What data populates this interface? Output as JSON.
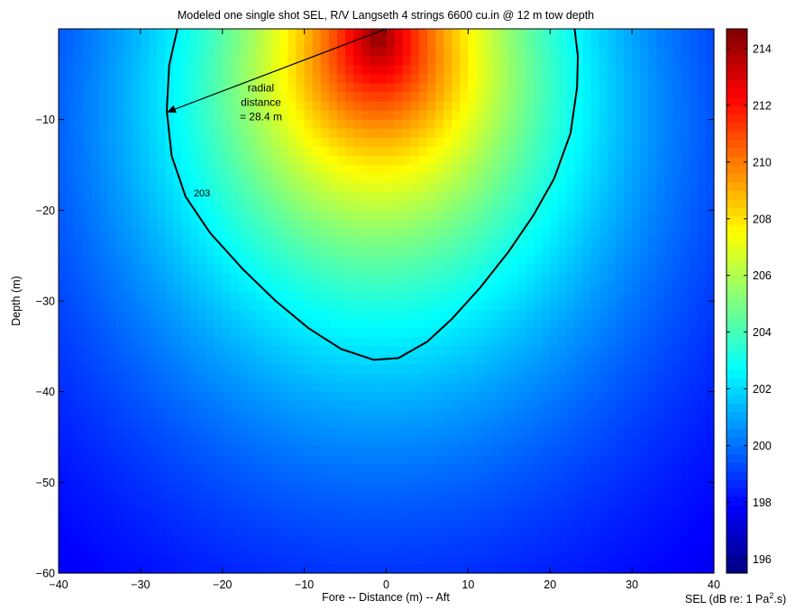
{
  "chart_data": {
    "type": "heatmap",
    "title": "Modeled one single shot SEL, R/V Langseth 4 strings 6600 cu.in @ 12 m tow depth",
    "xlabel": "Fore -- Distance (m) -- Aft",
    "ylabel": "Depth (m)",
    "xlim": [
      -40,
      40
    ],
    "ylim": [
      -60,
      0
    ],
    "x_ticks": [
      -40,
      -30,
      -20,
      -10,
      0,
      10,
      20,
      30,
      40
    ],
    "y_ticks": [
      -10,
      -20,
      -30,
      -40,
      -50,
      -60
    ],
    "colorbar": {
      "label_prefix": "SEL (dB re: 1 Pa",
      "label_sup": "2",
      "label_suffix": ".s)",
      "range": [
        195.5,
        214.7
      ],
      "ticks": [
        196,
        198,
        200,
        202,
        204,
        206,
        208,
        210,
        212,
        214
      ],
      "colormap": "jet"
    },
    "field_model": {
      "description_source": "values read from colour",
      "peak_sel": 214.6,
      "peak_x": -1,
      "peak_depth": -1,
      "min_sel": 195.6
    },
    "contour": {
      "level": 203,
      "label": "203",
      "points": [
        [
          -25.5,
          0
        ],
        [
          -26.5,
          -4
        ],
        [
          -26.8,
          -9
        ],
        [
          -26.2,
          -14
        ],
        [
          -24.5,
          -18.5
        ],
        [
          -21.5,
          -22.5
        ],
        [
          -17.5,
          -26.5
        ],
        [
          -13.5,
          -30
        ],
        [
          -9.5,
          -33
        ],
        [
          -5.5,
          -35.3
        ],
        [
          -1.5,
          -36.5
        ],
        [
          1.5,
          -36.3
        ],
        [
          5,
          -34.5
        ],
        [
          8,
          -32
        ],
        [
          11.5,
          -28.5
        ],
        [
          15,
          -24.5
        ],
        [
          18,
          -20.5
        ],
        [
          20.5,
          -16.5
        ],
        [
          22.5,
          -11.5
        ],
        [
          23.3,
          -6.5
        ],
        [
          23.4,
          -3
        ],
        [
          23,
          0
        ]
      ]
    },
    "annotation": {
      "lines": [
        "radial",
        "distance",
        "= 28.4 m"
      ],
      "arrow_from": [
        0,
        0
      ],
      "arrow_to": [
        -26.8,
        -9.2
      ]
    }
  }
}
